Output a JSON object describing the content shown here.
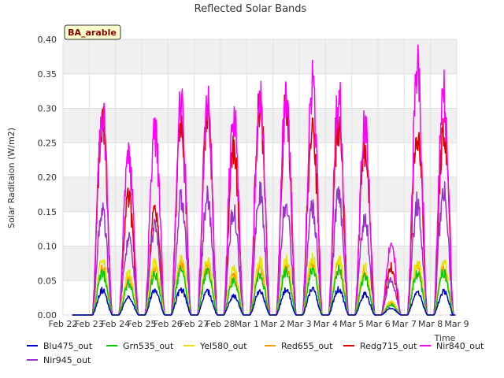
{
  "chart_data": {
    "type": "line",
    "title": "Reflected Solar Bands",
    "xlabel": "Time",
    "ylabel": "Solar Raditaion (W/m2)",
    "tag": "BA_arable",
    "ylim": [
      0,
      0.4
    ],
    "xlim": [
      "Feb 22",
      "Mar 9"
    ],
    "y_ticks": [
      0.0,
      0.05,
      0.1,
      0.15,
      0.2,
      0.25,
      0.3,
      0.35,
      0.4
    ],
    "y_tick_labels": [
      "0.00",
      "0.05",
      "0.10",
      "0.15",
      "0.20",
      "0.25",
      "0.30",
      "0.35",
      "0.40"
    ],
    "x_tick_labels": [
      "Feb 22",
      "Feb 23",
      "Feb 24",
      "Feb 25",
      "Feb 26",
      "Feb 27",
      "Feb 28",
      "Mar 1",
      "Mar 2",
      "Mar 3",
      "Mar 4",
      "Mar 5",
      "Mar 6",
      "Mar 7",
      "Mar 8",
      "Mar 9"
    ],
    "grid": true,
    "legend_position": "bottom",
    "days": [
      "Feb 23",
      "Feb 24",
      "Feb 25",
      "Feb 26",
      "Feb 27",
      "Feb 28",
      "Mar 1",
      "Mar 2",
      "Mar 3",
      "Mar 4",
      "Mar 5",
      "Mar 6",
      "Mar 7",
      "Mar 8"
    ],
    "series": [
      {
        "name": "Blu475_out",
        "color": "#0000cc",
        "daily_peak": [
          0.036,
          0.025,
          0.035,
          0.037,
          0.034,
          0.027,
          0.033,
          0.036,
          0.037,
          0.037,
          0.03,
          0.01,
          0.033,
          0.034
        ]
      },
      {
        "name": "Grn535_out",
        "color": "#00cc00",
        "daily_peak": [
          0.06,
          0.045,
          0.058,
          0.065,
          0.062,
          0.05,
          0.06,
          0.064,
          0.066,
          0.066,
          0.055,
          0.015,
          0.06,
          0.062
        ]
      },
      {
        "name": "Yel580_out",
        "color": "#e6e600",
        "daily_peak": [
          0.078,
          0.06,
          0.075,
          0.08,
          0.079,
          0.065,
          0.078,
          0.08,
          0.082,
          0.082,
          0.07,
          0.02,
          0.078,
          0.076
        ]
      },
      {
        "name": "Red655_out",
        "color": "#ff9900",
        "daily_peak": [
          0.068,
          0.052,
          0.066,
          0.072,
          0.07,
          0.058,
          0.07,
          0.072,
          0.074,
          0.074,
          0.062,
          0.018,
          0.07,
          0.068
        ]
      },
      {
        "name": "Redg715_out",
        "color": "#dd0000",
        "daily_peak": [
          0.28,
          0.17,
          0.15,
          0.27,
          0.285,
          0.245,
          0.31,
          0.3,
          0.28,
          0.28,
          0.24,
          0.07,
          0.27,
          0.275
        ]
      },
      {
        "name": "Nir840_out",
        "color": "#ff00ff",
        "daily_peak": [
          0.295,
          0.228,
          0.262,
          0.304,
          0.311,
          0.295,
          0.331,
          0.32,
          0.334,
          0.317,
          0.27,
          0.1,
          0.352,
          0.318
        ]
      },
      {
        "name": "Nir945_out",
        "color": "#9933cc",
        "daily_peak": [
          0.148,
          0.11,
          0.125,
          0.165,
          0.17,
          0.15,
          0.175,
          0.165,
          0.155,
          0.17,
          0.14,
          0.05,
          0.165,
          0.184
        ]
      }
    ]
  }
}
